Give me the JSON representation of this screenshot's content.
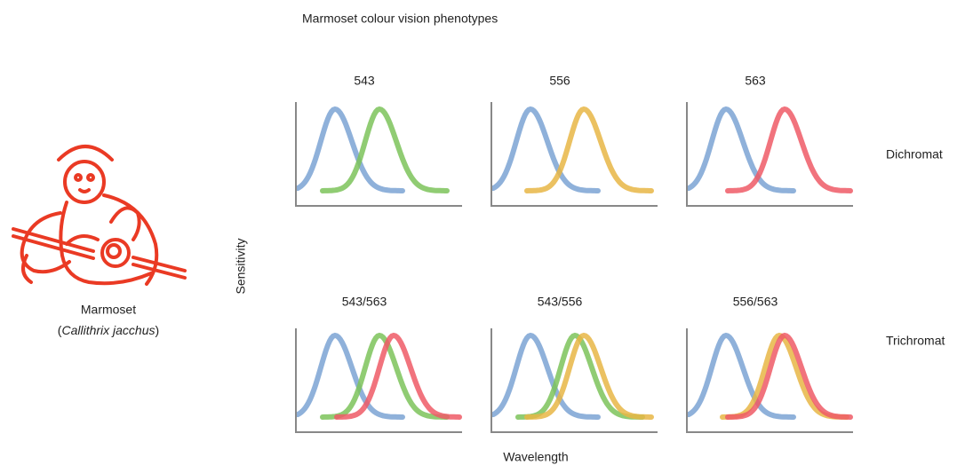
{
  "title": "Marmoset colour vision phenotypes",
  "animal": {
    "name": "Marmoset",
    "species_parts": [
      "(",
      "Callithrix jacchus",
      ")"
    ]
  },
  "axes": {
    "y_label": "Sensitivity",
    "x_label": "Wavelength"
  },
  "rows": [
    {
      "label": "Dichromat",
      "panels": [
        "543",
        "556",
        "563"
      ]
    },
    {
      "label": "Trichromat",
      "panels": [
        "543/563",
        "543/556",
        "556/563"
      ]
    }
  ]
}
